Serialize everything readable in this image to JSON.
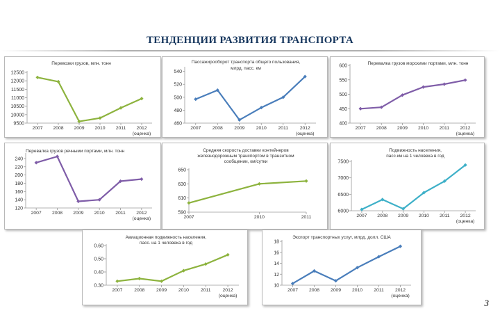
{
  "slide": {
    "title": "ТЕНДЕНЦИИ РАЗВИТИЯ ТРАНСПОРТА",
    "page_number": "3"
  },
  "chart_data": [
    {
      "id": "c1",
      "type": "line",
      "title": "Перевозки грузов, млн. тонн",
      "categories": [
        "2007",
        "2008",
        "2009",
        "2010",
        "2011",
        "2012\n(оценка)"
      ],
      "series": [
        {
          "values": [
            12200,
            11950,
            9600,
            9800,
            10400,
            10950
          ],
          "color": "#8db33e"
        }
      ],
      "ylim": [
        9500,
        12500
      ],
      "yticks": [
        9500,
        10000,
        10500,
        11000,
        11500,
        12000,
        12500
      ],
      "ytick_labels": [
        "9500",
        "10000",
        "10500",
        "11000",
        "11500",
        "12000",
        "12500"
      ]
    },
    {
      "id": "c2",
      "type": "line",
      "title": "Пассажирооборот транспорта общего пользования, млрд. пасс. км",
      "categories": [
        "2007",
        "2008",
        "2009",
        "2010",
        "2011",
        "2012\n(оценка)"
      ],
      "series": [
        {
          "values": [
            497,
            511,
            465,
            484,
            500,
            532
          ],
          "color": "#4a7ebb"
        }
      ],
      "ylim": [
        460,
        545
      ],
      "yticks": [
        460,
        480,
        500,
        520,
        540
      ],
      "ytick_labels": [
        "460",
        "480",
        "500",
        "520",
        "540"
      ]
    },
    {
      "id": "c3",
      "type": "line",
      "title": "Перевалка грузов морскими портами, млн. тонн",
      "categories": [
        "2007",
        "2008",
        "2009",
        "2010",
        "2011",
        "2012\n(оценка)"
      ],
      "series": [
        {
          "values": [
            450,
            455,
            497,
            525,
            535,
            549
          ],
          "color": "#7f5da8"
        }
      ],
      "ylim": [
        400,
        600
      ],
      "yticks": [
        400,
        450,
        500,
        550,
        600
      ],
      "ytick_labels": [
        "400",
        "450",
        "500",
        "550",
        "600"
      ]
    },
    {
      "id": "c4",
      "type": "line",
      "title": "Перевалка грузов речными портами, млн. тонн",
      "categories": [
        "2007",
        "2008",
        "2009",
        "2010",
        "2011",
        "2012\n(оценка)"
      ],
      "series": [
        {
          "values": [
            230,
            245,
            136,
            140,
            185,
            190
          ],
          "color": "#7f5da8"
        }
      ],
      "ylim": [
        120,
        250
      ],
      "yticks": [
        120,
        140,
        160,
        180,
        200,
        220,
        240
      ],
      "ytick_labels": [
        "120",
        "140",
        "160",
        "180",
        "200",
        "220",
        "240"
      ]
    },
    {
      "id": "c5",
      "type": "line",
      "title": "Средняя скорость доставки контейнеров железнодорожным транспортом в транзитном сообщении, км/сутки",
      "categories": [
        "2007",
        "2010",
        "2011"
      ],
      "x_positions": [
        0.0,
        0.6,
        1.0
      ],
      "series": [
        {
          "values": [
            603,
            630,
            634
          ],
          "color": "#8db33e"
        }
      ],
      "ylim": [
        590,
        650
      ],
      "yticks": [
        590,
        610,
        630,
        650
      ],
      "ytick_labels": [
        "590",
        "610",
        "630",
        "650"
      ]
    },
    {
      "id": "c6",
      "type": "line",
      "title": "Подвижность населения, пасс.км на 1 человека в год",
      "categories": [
        "2007",
        "2008",
        "2009",
        "2010",
        "2011",
        "2012\n(оценка)"
      ],
      "series": [
        {
          "values": [
            6040,
            6340,
            6060,
            6550,
            6900,
            7390
          ],
          "color": "#3eb0c8"
        }
      ],
      "ylim": [
        6000,
        7500
      ],
      "yticks": [
        6000,
        6500,
        7000,
        7500
      ],
      "ytick_labels": [
        "6000",
        "6500",
        "7000",
        "7500"
      ]
    },
    {
      "id": "c7",
      "type": "line",
      "title": "Авиационная подвижность населения, пасс. на 1 человека в год",
      "categories": [
        "2007",
        "2008",
        "2009",
        "2010",
        "2011",
        "2012\n(оценка)"
      ],
      "series": [
        {
          "values": [
            0.33,
            0.35,
            0.33,
            0.41,
            0.46,
            0.53
          ],
          "color": "#8db33e"
        }
      ],
      "ylim": [
        0.3,
        0.6
      ],
      "yticks": [
        0.3,
        0.4,
        0.5,
        0.6
      ],
      "ytick_labels": [
        "0.30",
        "0.40",
        "0.50",
        "0.60"
      ]
    },
    {
      "id": "c8",
      "type": "line",
      "title": "Экспорт транспортных услуг, млрд. долл. США",
      "categories": [
        "2007",
        "2008",
        "2009",
        "2010",
        "2011",
        "2012\n(оценка)"
      ],
      "series": [
        {
          "values": [
            10.3,
            12.6,
            10.8,
            13.2,
            15.2,
            17.1
          ],
          "color": "#4a7ebb"
        }
      ],
      "ylim": [
        10,
        18
      ],
      "yticks": [
        10,
        12,
        14,
        16,
        18
      ],
      "ytick_labels": [
        "10",
        "12",
        "14",
        "16",
        "18"
      ]
    }
  ]
}
